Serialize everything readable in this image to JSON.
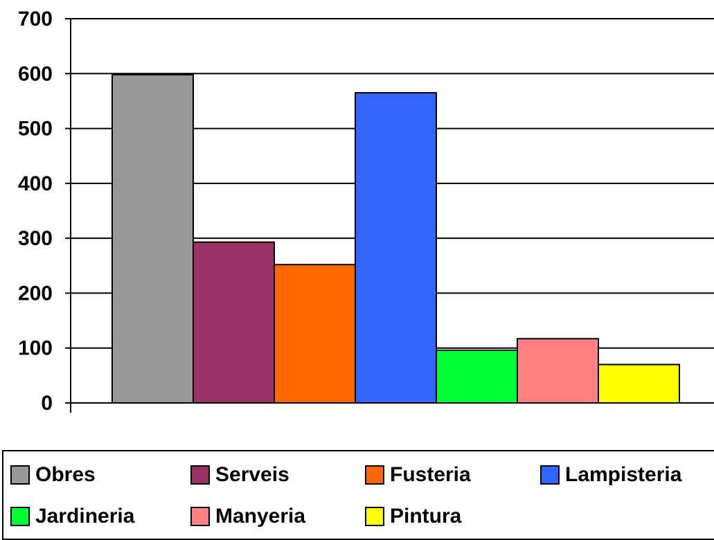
{
  "chart_data": {
    "type": "bar",
    "title": "",
    "xlabel": "",
    "ylabel": "",
    "ylim": [
      0,
      700
    ],
    "yticks": [
      0,
      100,
      200,
      300,
      400,
      500,
      600,
      700
    ],
    "grid": true,
    "legend_position": "bottom",
    "series": [
      {
        "name": "Obres",
        "value": 598,
        "color": "#999999"
      },
      {
        "name": "Serveis",
        "value": 293,
        "color": "#993366"
      },
      {
        "name": "Fusteria",
        "value": 252,
        "color": "#FF6600"
      },
      {
        "name": "Lampisteria",
        "value": 565,
        "color": "#3366FF"
      },
      {
        "name": "Jardineria",
        "value": 96,
        "color": "#00FF33"
      },
      {
        "name": "Manyeria",
        "value": 117,
        "color": "#FF8080"
      },
      {
        "name": "Pintura",
        "value": 70,
        "color": "#FFFF00"
      }
    ]
  }
}
